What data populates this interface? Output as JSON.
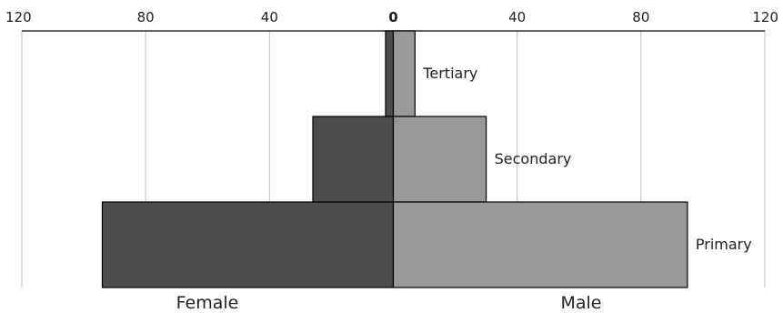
{
  "chart_data": {
    "type": "bar",
    "orientation": "horizontal-diverging",
    "categories": [
      "Tertiary",
      "Secondary",
      "Primary"
    ],
    "series": [
      {
        "name": "Female",
        "values": [
          2.5,
          26,
          94
        ],
        "color": "#4d4d4d"
      },
      {
        "name": "Male",
        "values": [
          7,
          30,
          95
        ],
        "color": "#999999"
      }
    ],
    "xlim": [
      -120,
      120
    ],
    "x_ticks": [
      -120,
      -80,
      -40,
      0,
      40,
      80,
      120
    ],
    "x_tick_labels": [
      "120",
      "80",
      "40",
      "0",
      "40",
      "80",
      "120"
    ],
    "grid": true,
    "tick_position": "top"
  }
}
